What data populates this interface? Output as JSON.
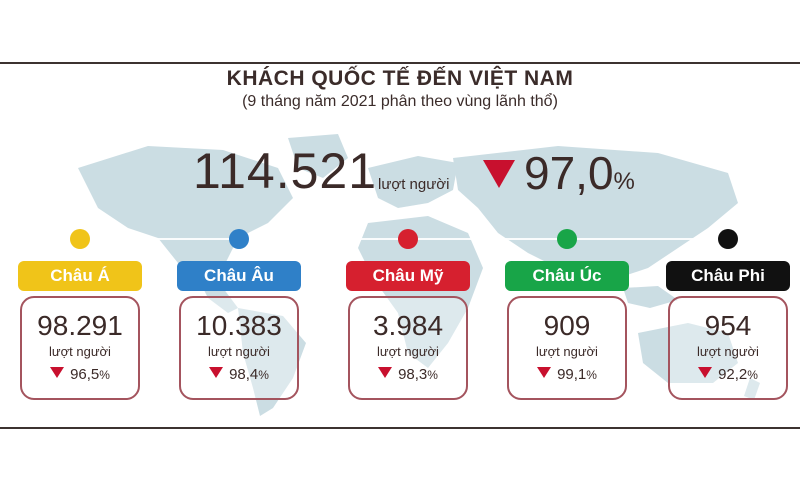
{
  "header": {
    "title": "KHÁCH QUỐC TẾ ĐẾN VIỆT NAM",
    "subtitle": "(9 tháng năm 2021 phân theo vùng lãnh thổ)"
  },
  "total": {
    "value": "114.521",
    "unit": "lượt người",
    "change": "97,0",
    "percent_sign": "%",
    "direction": "down"
  },
  "colors": {
    "arrow": "#c8102e",
    "card_border": "#a4545e",
    "map": "#cbdde3"
  },
  "chart_data": {
    "type": "table",
    "categories": [
      "Châu Á",
      "Châu Âu",
      "Châu Mỹ",
      "Châu Úc",
      "Châu Phi"
    ],
    "series": [
      {
        "values": [
          98291,
          10383,
          3984,
          909,
          954
        ]
      },
      {
        "values": [
          96.5,
          98.4,
          98.3,
          99.1,
          92.2
        ]
      }
    ],
    "total": 114521,
    "total_change_percent": 97.0
  },
  "regions": [
    {
      "name": "Châu Á",
      "color": "#f0c419",
      "value": "98.291",
      "unit": "lượt người",
      "change": "96,5",
      "percent_sign": "%"
    },
    {
      "name": "Châu Âu",
      "color": "#2f80c8",
      "value": "10.383",
      "unit": "lượt người",
      "change": "98,4",
      "percent_sign": "%"
    },
    {
      "name": "Châu Mỹ",
      "color": "#d6202f",
      "value": "3.984",
      "unit": "lượt người",
      "change": "98,3",
      "percent_sign": "%"
    },
    {
      "name": "Châu Úc",
      "color": "#18a548",
      "value": "909",
      "unit": "lượt người",
      "change": "99,1",
      "percent_sign": "%"
    },
    {
      "name": "Châu Phi",
      "color": "#111111",
      "value": "954",
      "unit": "lượt người",
      "change": "92,2",
      "percent_sign": "%"
    }
  ]
}
